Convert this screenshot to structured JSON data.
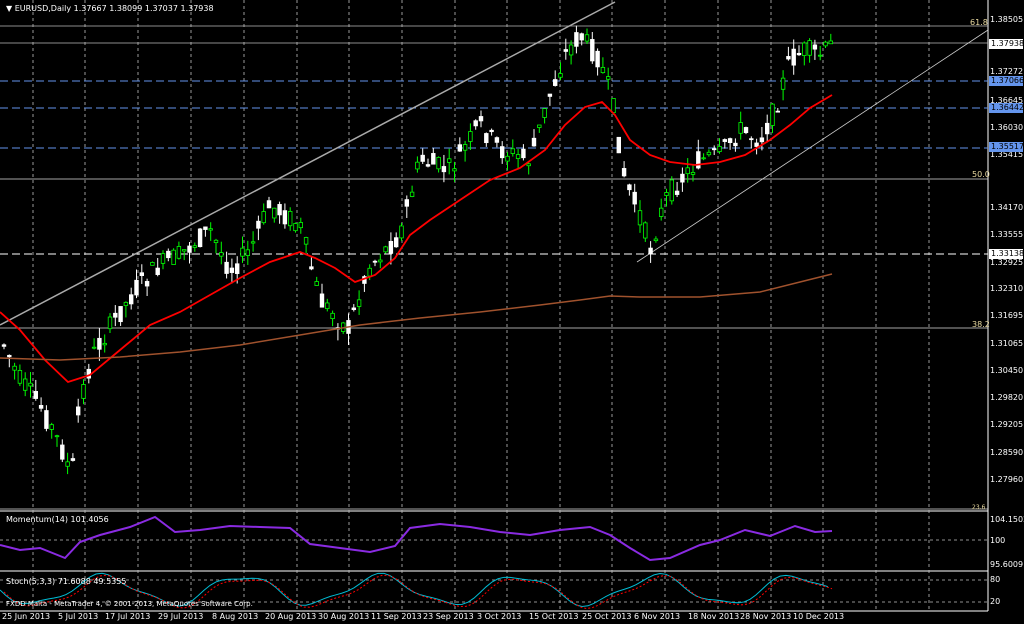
{
  "header": {
    "symbol": "EURUSD,Daily",
    "ohlc": "1.37667 1.38099 1.37037 1.37938"
  },
  "fib_labels": {
    "f618": "61.8",
    "f500": "50.0",
    "f382": "38.2",
    "f236": "23.6"
  },
  "price_axis": [
    "1.38505",
    "1.37272",
    "1.36645",
    "1.36030",
    "1.35415",
    "1.34170",
    "1.33555",
    "1.32925",
    "1.32310",
    "1.31695",
    "1.31065",
    "1.30450",
    "1.29820",
    "1.29205",
    "1.28590",
    "1.27960"
  ],
  "price_boxes": {
    "current": "1.37938",
    "level1": "1.37066",
    "level2": "1.36442",
    "level3": "1.35517",
    "level4": "1.33138"
  },
  "momentum": {
    "label": "Momentum(14) 101.4056",
    "axis": [
      "104.1502",
      "100",
      "95.6009"
    ]
  },
  "stoch": {
    "label": "Stoch(5,3,3) 71.6088 49.5355",
    "axis": [
      "80",
      "20"
    ],
    "copyright": "FXDD Malta - MetaTrader 4, © 2001-2013, MetaQuotes Software Corp."
  },
  "dates": [
    "25 Jun 2013",
    "5 Jul 2013",
    "17 Jul 2013",
    "29 Jul 2013",
    "8 Aug 2013",
    "20 Aug 2013",
    "30 Aug 2013",
    "11 Sep 2013",
    "23 Sep 2013",
    "3 Oct 2013",
    "15 Oct 2013",
    "25 Oct 2013",
    "6 Nov 2013",
    "18 Nov 2013",
    "28 Nov 2013",
    "10 Dec 2013"
  ],
  "colors": {
    "background": "#000000",
    "bull": "#00ff00",
    "bear": "#ffffff",
    "ma_fast": "#ff0000",
    "ma_slow": "#a0522d",
    "momentum": "#8a2be2",
    "stoch_main": "#00bcd4",
    "stoch_signal": "#ff0000",
    "grid": "#c0c0c0",
    "level_lines": "#6495ed"
  }
}
